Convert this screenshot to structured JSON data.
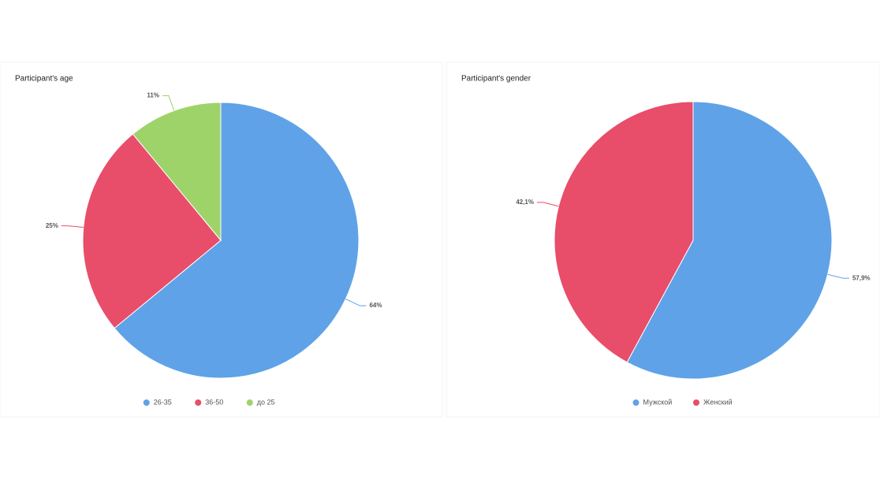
{
  "chart_data": [
    {
      "type": "pie",
      "title": "Participant's age",
      "categories": [
        "26-35",
        "36-50",
        "до 25"
      ],
      "values": [
        64,
        25,
        11
      ],
      "value_labels": [
        "64%",
        "25%",
        "11%"
      ],
      "colors": [
        "#5fa2e8",
        "#e84d6a",
        "#9ed36a"
      ]
    },
    {
      "type": "pie",
      "title": "Participant's gender",
      "categories": [
        "Мужской",
        "Женский"
      ],
      "values": [
        57.9,
        42.1
      ],
      "value_labels": [
        "57,9%",
        "42,1%"
      ],
      "colors": [
        "#5fa2e8",
        "#e84d6a"
      ]
    }
  ]
}
